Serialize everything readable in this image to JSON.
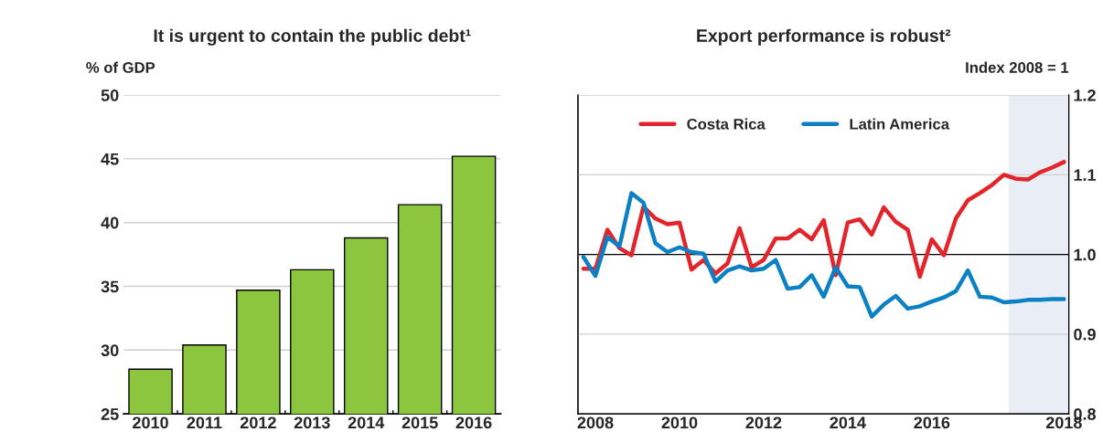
{
  "chart_data": [
    {
      "type": "bar",
      "title": "It is urgent to contain the public debt¹",
      "ylabel": "% of GDP",
      "categories": [
        "2010",
        "2011",
        "2012",
        "2013",
        "2014",
        "2015",
        "2016"
      ],
      "values": [
        28.5,
        30.4,
        34.7,
        36.3,
        38.8,
        41.4,
        45.2
      ],
      "color": "#8cc63f",
      "ylim": [
        25,
        50
      ],
      "yticks": [
        25,
        30,
        35,
        40,
        45,
        50
      ],
      "grid": "y",
      "legend": false
    },
    {
      "type": "line",
      "title": "Export performance is robust²",
      "y2label": "Index 2008 = 1",
      "categories": [
        null,
        "2008",
        null,
        null,
        null,
        null,
        null,
        null,
        "2010",
        null,
        null,
        null,
        null,
        null,
        null,
        "2012",
        null,
        null,
        null,
        null,
        null,
        null,
        "2014",
        null,
        null,
        null,
        null,
        null,
        null,
        "2016",
        null,
        null,
        null,
        null,
        null,
        null,
        null,
        null,
        null,
        null,
        "2018"
      ],
      "series": [
        {
          "name": "Costa Rica",
          "color": "#e3242b",
          "axis": "y2",
          "values": [
            0.982,
            0.982,
            1.031,
            1.008,
            0.999,
            1.06,
            1.045,
            1.038,
            1.04,
            0.981,
            0.993,
            0.976,
            0.989,
            1.033,
            0.984,
            0.993,
            1.02,
            1.02,
            1.031,
            1.019,
            1.043,
            0.974,
            1.04,
            1.044,
            1.025,
            1.059,
            1.041,
            1.031,
            0.972,
            1.019,
            0.999,
            1.045,
            1.068,
            1.077,
            1.087,
            1.1,
            1.095,
            1.094,
            1.103,
            1.109,
            1.116
          ]
        },
        {
          "name": "Latin America",
          "color": "#0b80c3",
          "axis": "y2",
          "values": [
            0.997,
            0.973,
            1.022,
            1.01,
            1.077,
            1.065,
            1.014,
            1.003,
            1.009,
            1.003,
            1.001,
            0.966,
            0.98,
            0.985,
            0.98,
            0.982,
            0.993,
            0.957,
            0.959,
            0.974,
            0.947,
            0.984,
            0.96,
            0.959,
            0.922,
            0.937,
            0.948,
            0.932,
            0.935,
            0.941,
            0.946,
            0.954,
            0.98,
            0.947,
            0.946,
            0.94,
            0.941,
            0.943,
            0.943,
            0.944,
            0.944
          ]
        }
      ],
      "y2lim": [
        0.8,
        1.2
      ],
      "y2ticks": [
        0.8,
        0.9,
        {
          "value": 1,
          "label": "1.0"
        },
        1.1,
        1.2
      ],
      "ref_lines": [
        {
          "axis": "y2",
          "value": 1.0,
          "color": "#000000"
        }
      ],
      "grid": "y",
      "legend": "top left",
      "line_style": "solid",
      "marker": "none"
    }
  ]
}
